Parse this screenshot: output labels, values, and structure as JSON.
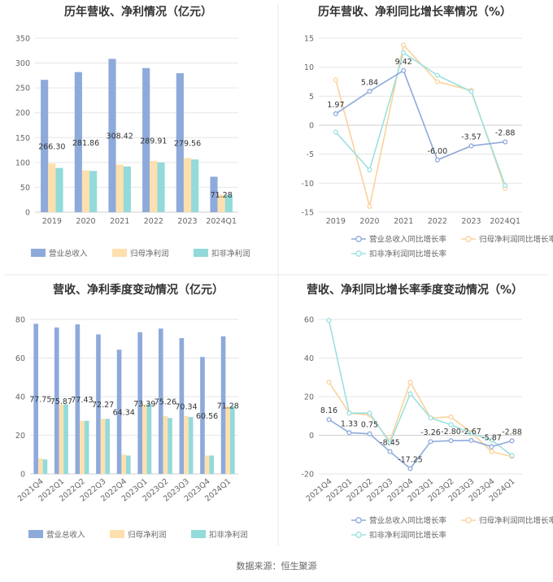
{
  "colors": {
    "revenue": "#8eaadb",
    "netprofit": "#fde0ad",
    "deducted": "#93dada",
    "rev_line": "#8eaadb",
    "np_line": "#fbd29b",
    "ded_line": "#9de0e0",
    "grid": "#e6e6e6",
    "axis": "#cfcfcf",
    "divider": "#e9e9e9"
  },
  "legend_labels": [
    "营业总收入",
    "归母净利润",
    "扣非净利润"
  ],
  "legend_growth_labels": [
    "营业总收入同比增长率",
    "归母净利润同比增长率",
    "扣非净利润同比增长率"
  ],
  "source_text": "数据来源：恒生聚源",
  "chart_data": [
    {
      "type": "bar",
      "title": "历年营收、净利情况（亿元）",
      "categories": [
        "2019",
        "2020",
        "2021",
        "2022",
        "2023",
        "2024Q1"
      ],
      "ylim": [
        0,
        350
      ],
      "yticks": [
        0,
        50,
        100,
        150,
        200,
        250,
        300,
        350
      ],
      "series": [
        {
          "name": "营业总收入",
          "values": [
            266.3,
            281.86,
            308.42,
            289.91,
            279.56,
            71.28
          ]
        },
        {
          "name": "归母净利润",
          "values": [
            98,
            84,
            96,
            103,
            109,
            35
          ]
        },
        {
          "name": "扣非净利润",
          "values": [
            89,
            83,
            92,
            100,
            106,
            35
          ]
        }
      ],
      "labels": [
        "266.30",
        "281.86",
        "308.42",
        "289.91",
        "279.56",
        "71.28"
      ]
    },
    {
      "type": "line",
      "title": "历年营收、净利同比增长率情况（%）",
      "categories": [
        "2019",
        "2020",
        "2021",
        "2022",
        "2023",
        "2024Q1"
      ],
      "ylim": [
        -15,
        15
      ],
      "yticks": [
        -15,
        -10,
        -5,
        0,
        5,
        10,
        15
      ],
      "series": [
        {
          "name": "营业总收入同比增长率",
          "values": [
            1.97,
            5.84,
            9.42,
            -6.0,
            -3.57,
            -2.88
          ]
        },
        {
          "name": "归母净利润同比增长率",
          "values": [
            7.8,
            -14.0,
            13.8,
            7.5,
            6.0,
            -10.9
          ]
        },
        {
          "name": "扣非净利润同比增长率",
          "values": [
            -1.2,
            -7.7,
            12.5,
            8.6,
            5.8,
            -10.4
          ]
        }
      ],
      "labels": [
        "1.97",
        "5.84",
        "9.42",
        "-6.00",
        "-3.57",
        "-2.88"
      ]
    },
    {
      "type": "bar",
      "title": "营收、净利季度变动情况（亿元）",
      "categories": [
        "2021Q4",
        "2022Q1",
        "2022Q2",
        "2022Q3",
        "2022Q4",
        "2023Q1",
        "2023Q2",
        "2023Q3",
        "2023Q4",
        "2024Q1"
      ],
      "ylim": [
        0,
        80
      ],
      "yticks": [
        0,
        20,
        40,
        60,
        80
      ],
      "series": [
        {
          "name": "营业总收入",
          "values": [
            77.75,
            75.87,
            77.43,
            72.27,
            64.34,
            73.39,
            75.26,
            70.34,
            60.56,
            71.28
          ]
        },
        {
          "name": "归母净利润",
          "values": [
            8,
            36,
            27.5,
            28.5,
            10,
            36,
            30,
            30,
            9.5,
            35
          ]
        },
        {
          "name": "扣非净利润",
          "values": [
            7.5,
            36,
            27.5,
            28.5,
            9.5,
            36.5,
            29,
            29.5,
            9.5,
            35
          ]
        }
      ],
      "labels": [
        "77.75",
        "75.87",
        "77.43",
        "72.27",
        "64.34",
        "73.39",
        "75.26",
        "70.34",
        "60.56",
        "71.28"
      ]
    },
    {
      "type": "line",
      "title": "营收、净利同比增长率季度变动情况（%）",
      "categories": [
        "2021Q4",
        "2022Q1",
        "2022Q2",
        "2022Q3",
        "2022Q4",
        "2023Q1",
        "2023Q2",
        "2023Q3",
        "2023Q4",
        "2024Q1"
      ],
      "ylim": [
        -20,
        60
      ],
      "yticks": [
        -20,
        0,
        20,
        40,
        60
      ],
      "series": [
        {
          "name": "营业总收入同比增长率",
          "values": [
            8.16,
            1.33,
            0.75,
            -8.45,
            -17.25,
            -3.26,
            -2.8,
            -2.67,
            -5.87,
            -2.88
          ]
        },
        {
          "name": "归母净利润同比增长率",
          "values": [
            27.5,
            11.5,
            10.5,
            -3.0,
            27.5,
            9.0,
            9.5,
            1.5,
            -8.5,
            -11.0
          ]
        },
        {
          "name": "扣非净利润同比增长率",
          "values": [
            59.5,
            11.5,
            11.5,
            -4.0,
            21.5,
            9.0,
            5.5,
            1.0,
            -2.5,
            -10.5
          ]
        }
      ],
      "labels": [
        "8.16",
        "1.33",
        "0.75",
        "-8.45",
        "-17.25",
        "-3.26",
        "-2.80",
        "-2.67",
        "-5.87",
        "-2.88"
      ]
    }
  ]
}
